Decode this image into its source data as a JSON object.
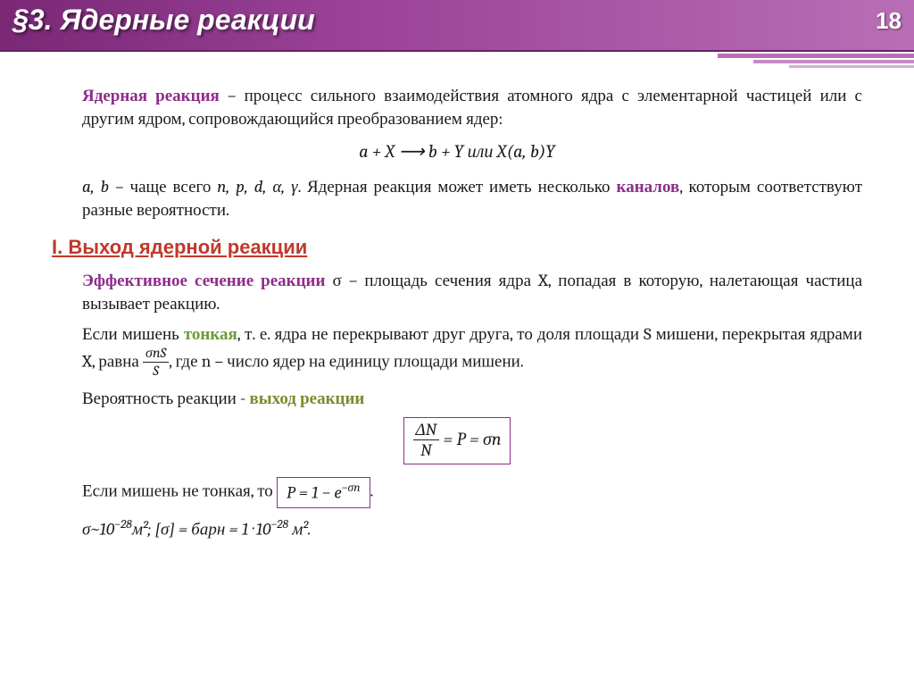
{
  "header": {
    "title": "§3. Ядерные реакции",
    "page_number": "18",
    "colors": {
      "grad_start": "#7a2876",
      "grad_end": "#b86fb5",
      "title_color": "#ffffff"
    }
  },
  "definition": {
    "term": "Ядерная реакция",
    "text": " – процесс сильного взаимодействия атомного ядра с элементарной частицей или с другим ядром, сопровождающийся преобразованием ядер:"
  },
  "equation1": "a + X ⟶ b + Y или X(a, b)Y",
  "para2": {
    "pre": "a, b ",
    "mid1": "– чаще всего ",
    "particles": "n, p, d, α, γ",
    "mid2": ". Ядерная реакция может иметь несколько ",
    "channels": "каналов",
    "post": ", которым соответствуют разные вероятности."
  },
  "section1_heading": "I. Выход ядерной реакции",
  "cross_section": {
    "term": "Эффективное сечение реакции",
    "sigma": " σ ",
    "text": "– площадь сечения ядра X, попадая в которую, налетающая частица вызывает реакцию."
  },
  "thin_target": {
    "pre": "Если мишень ",
    "thin": "тонкая",
    "mid": ", т. е. ядра не перекрывают друг друга, то доля площади S мишени, перекрытая ядрами X, равна ",
    "frac_num": "σnS",
    "frac_den": "S",
    "post": ", где n – число ядер на единицу площади мишени."
  },
  "prob_line": {
    "text": "Вероятность реакции - ",
    "yield": "выход реакции"
  },
  "eq2": {
    "frac_num": "ΔN",
    "frac_den": "N",
    "rhs": " = P = σn"
  },
  "not_thin": {
    "pre": "Если мишень не тонкая, то ",
    "boxed": "P = 1 − e",
    "exp": "−σn",
    "post": "."
  },
  "sigma_val": {
    "pre": "σ~10",
    "exp1": "−28",
    "mid": "м²;  [σ] = барн = 1 · 10",
    "exp2": "−28",
    "post": " м²."
  },
  "styling": {
    "term_color": "#8e2d8a",
    "heading_color": "#c0392b",
    "green": "#6b9b37",
    "body_fontsize": 19,
    "heading_fontsize": 22,
    "title_fontsize": 32
  }
}
